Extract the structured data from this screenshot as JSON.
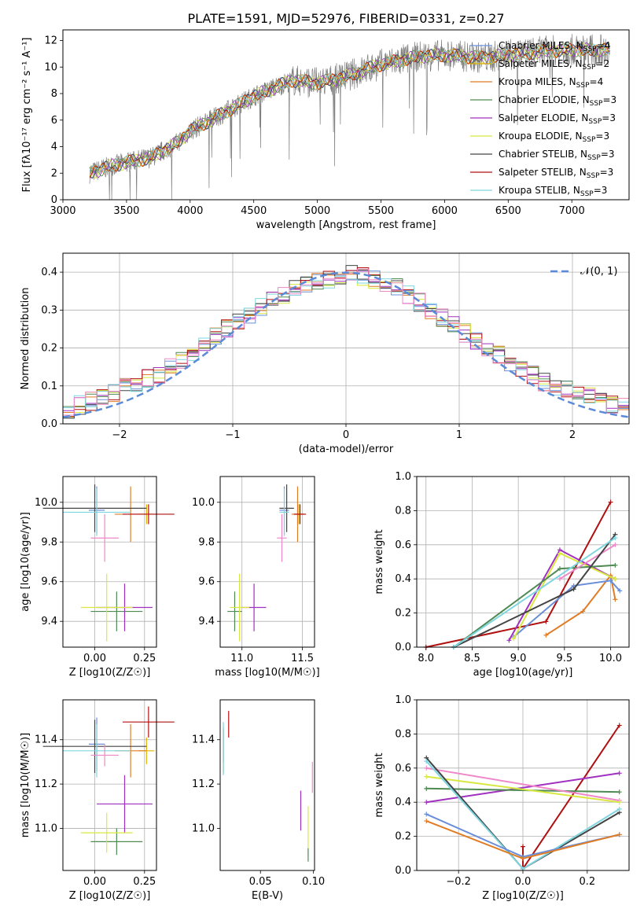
{
  "panel1": {
    "title": "PLATE=1591, MJD=52976, FIBERID=0331, z=0.27",
    "xlabel": "wavelength [Angstrom, rest frame]",
    "ylabel": "Flux [f_λ10^{-17} erg cm^{-2} s^{-1} A^{-1}]",
    "xlim": [
      3000,
      7450
    ],
    "ylim": [
      0,
      12.8
    ],
    "xticks": [
      "3000",
      "3500",
      "4000",
      "4500",
      "5000",
      "5500",
      "6000",
      "6500",
      "7000"
    ],
    "yticks": [
      "0",
      "2",
      "4",
      "6",
      "8",
      "10",
      "12"
    ],
    "legend": [
      {
        "label": "Chabrier MILES, N_SSP=4",
        "color": "#6a8fd8"
      },
      {
        "label": "Salpeter MILES, N_SSP=2",
        "color": "#e0b400"
      },
      {
        "label": "Kroupa MILES, N_SSP=4",
        "color": "#e07c25"
      },
      {
        "label": "Chabrier ELODIE, N_SSP=3",
        "color": "#4e8a52"
      },
      {
        "label": "Salpeter ELODIE, N_SSP=3",
        "color": "#a030c0"
      },
      {
        "label": "Kroupa ELODIE, N_SSP=3",
        "color": "#d8e840"
      },
      {
        "label": "Chabrier STELIB, N_SSP=3",
        "color": "#444444"
      },
      {
        "label": "Salpeter STELIB, N_SSP=3",
        "color": "#b01010"
      },
      {
        "label": "Kroupa STELIB, N_SSP=3",
        "color": "#7fd6e0"
      }
    ]
  },
  "panel2": {
    "xlabel": "(data-model)/error",
    "ylabel": "Normed distribution",
    "legend_label": "𝒩(0, 1)",
    "xlim": [
      -2.5,
      2.5
    ],
    "ylim": [
      0,
      0.45
    ],
    "xticks": [
      "−2",
      "−1",
      "0",
      "1",
      "2"
    ],
    "yticks": [
      "0.0",
      "0.1",
      "0.2",
      "0.3",
      "0.4"
    ]
  },
  "panel3": {
    "xlabel": "Z [log10(Z/Z☉)]",
    "ylabel": "age  [log10(age/yr)]",
    "xticks": [
      "0.00",
      "0.25"
    ],
    "yticks": [
      "9.4",
      "9.6",
      "9.8",
      "10.0"
    ]
  },
  "panel4": {
    "xlabel": "mass [log10(M/M☉)]",
    "xticks": [
      "11.0",
      "11.5"
    ],
    "yticks": [
      "9.4",
      "9.6",
      "9.8",
      "10.0"
    ]
  },
  "panel5": {
    "xlabel": "age  [log10(age/yr)]",
    "ylabel": "mass weight",
    "xticks": [
      "8.0",
      "8.5",
      "9.0",
      "9.5",
      "10.0"
    ],
    "yticks": [
      "0.0",
      "0.2",
      "0.4",
      "0.6",
      "0.8",
      "1.0"
    ]
  },
  "panel6": {
    "xlabel": "Z [log10(Z/Z☉)]",
    "ylabel": "mass [log10(M/M☉)]",
    "xticks": [
      "0.00",
      "0.25"
    ],
    "yticks": [
      "11.0",
      "11.2",
      "11.4"
    ]
  },
  "panel7": {
    "xlabel": "E(B-V)",
    "xticks": [
      "0.05",
      "0.10"
    ],
    "yticks": [
      "11.0",
      "11.2",
      "11.4"
    ]
  },
  "panel8": {
    "xlabel": "Z [log10(Z/Z☉)]",
    "ylabel": "mass weight",
    "xticks": [
      "−0.2",
      "0.0",
      "0.2"
    ],
    "yticks": [
      "0.0",
      "0.2",
      "0.4",
      "0.6",
      "0.8",
      "1.0"
    ]
  },
  "chart_data": [
    {
      "type": "line",
      "title": "PLATE=1591, MJD=52976, FIBERID=0331, z=0.27",
      "x_range": [
        3210,
        7300
      ],
      "spectrum_continuum": {
        "x": [
          3210,
          3400,
          3700,
          3900,
          4000,
          4200,
          4500,
          4800,
          5000,
          5200,
          5500,
          5800,
          6000,
          6300,
          6600,
          6800,
          7000,
          7300
        ],
        "y": [
          2.0,
          2.6,
          3.2,
          4.3,
          5.2,
          6.2,
          7.8,
          9.0,
          8.8,
          9.2,
          10.2,
          10.8,
          10.9,
          10.7,
          11.0,
          11.2,
          11.3,
          11.3
        ]
      },
      "series_names": [
        "Chabrier MILES, N_SSP=4",
        "Salpeter MILES, N_SSP=2",
        "Kroupa MILES, N_SSP=4",
        "Chabrier ELODIE, N_SSP=3",
        "Salpeter ELODIE, N_SSP=3",
        "Kroupa ELODIE, N_SSP=3",
        "Chabrier STELIB, N_SSP=3",
        "Salpeter STELIB, N_SSP=3",
        "Kroupa STELIB, N_SSP=3"
      ]
    },
    {
      "type": "histogram",
      "bin_edges_start": -2.5,
      "bin_width": 0.1,
      "bins": 50,
      "envelope": [
        0.04,
        0.05,
        0.06,
        0.07,
        0.08,
        0.1,
        0.11,
        0.12,
        0.13,
        0.15,
        0.17,
        0.19,
        0.21,
        0.23,
        0.25,
        0.27,
        0.29,
        0.31,
        0.33,
        0.34,
        0.36,
        0.37,
        0.38,
        0.38,
        0.39,
        0.4,
        0.39,
        0.38,
        0.37,
        0.36,
        0.34,
        0.32,
        0.3,
        0.28,
        0.26,
        0.24,
        0.22,
        0.2,
        0.18,
        0.16,
        0.15,
        0.13,
        0.11,
        0.1,
        0.09,
        0.08,
        0.07,
        0.06,
        0.05,
        0.05
      ],
      "gaussian": {
        "mean": 0,
        "sigma": 1
      }
    },
    {
      "type": "scatter",
      "name": "age vs Z / mass (error crosses)",
      "points": [
        {
          "color": "#6a8fd8",
          "Z": 0.01,
          "Zerr": 0.04,
          "age": 9.96,
          "ageerr": 0.12,
          "mass": 11.35,
          "merr": 0.04,
          "mass_z": 11.38,
          "mzerr": 0.12
        },
        {
          "color": "#e0b400",
          "Z": 0.26,
          "Zerr": 0.04,
          "age": 9.94,
          "ageerr": 0.05,
          "mass": 11.47,
          "merr": 0.04,
          "mass_z": 11.35,
          "mzerr": 0.06
        },
        {
          "color": "#e07c25",
          "Z": 0.18,
          "Zerr": 0.08,
          "age": 9.94,
          "ageerr": 0.14,
          "mass": 11.46,
          "merr": 0.05,
          "mass_z": 11.35,
          "mzerr": 0.12
        },
        {
          "color": "#4e8a52",
          "Z": 0.11,
          "Zerr": 0.13,
          "age": 9.45,
          "ageerr": 0.1,
          "mass": 10.94,
          "merr": 0.06,
          "mass_z": 10.94,
          "mzerr": 0.06
        },
        {
          "color": "#a030c0",
          "Z": 0.15,
          "Zerr": 0.14,
          "age": 9.47,
          "ageerr": 0.12,
          "mass": 11.1,
          "merr": 0.1,
          "mass_z": 11.11,
          "mzerr": 0.13
        },
        {
          "color": "#d8e840",
          "Z": 0.06,
          "Zerr": 0.13,
          "age": 9.47,
          "ageerr": 0.17,
          "mass": 10.98,
          "merr": 0.08,
          "mass_z": 10.98,
          "mzerr": 0.09
        },
        {
          "color": "#444444",
          "Z": 0.0,
          "Zerr": 0.26,
          "age": 9.97,
          "ageerr": 0.12,
          "mass": 11.37,
          "merr": 0.06,
          "mass_z": 11.37,
          "mzerr": 0.12
        },
        {
          "color": "#b01010",
          "Z": 0.27,
          "Zerr": 0.13,
          "age": 9.94,
          "ageerr": 0.05,
          "mass": 11.48,
          "merr": 0.05,
          "mass_z": 11.48,
          "mzerr": 0.07
        },
        {
          "color": "#7fd6e0",
          "Z": 0.01,
          "Zerr": 0.17,
          "age": 9.95,
          "ageerr": 0.12,
          "mass": 11.35,
          "merr": 0.04,
          "mass_z": 11.35,
          "mzerr": 0.12
        },
        {
          "color": "#ee88c8",
          "Z": 0.05,
          "Zerr": 0.07,
          "age": 9.82,
          "ageerr": 0.12,
          "mass": 11.33,
          "merr": 0.04,
          "mass_z": 11.33,
          "mzerr": 0.05
        }
      ],
      "ebv": [
        {
          "color": "#6a8fd8",
          "x": 0.015,
          "y": 11.38,
          "err": 0.08
        },
        {
          "color": "#e07c25",
          "x": 0.015,
          "y": 11.35,
          "err": 0.1
        },
        {
          "color": "#7fd6e0",
          "x": 0.015,
          "y": 11.36,
          "err": 0.12
        },
        {
          "color": "#b01010",
          "x": 0.02,
          "y": 11.47,
          "err": 0.06
        },
        {
          "color": "#a030c0",
          "x": 0.088,
          "y": 11.08,
          "err": 0.09
        },
        {
          "color": "#d8e840",
          "x": 0.095,
          "y": 10.99,
          "err": 0.11
        },
        {
          "color": "#4e8a52",
          "x": 0.095,
          "y": 10.88,
          "err": 0.03
        },
        {
          "color": "#ee88c8",
          "x": 0.099,
          "y": 11.23,
          "err": 0.07
        }
      ]
    },
    {
      "type": "line",
      "name": "mass weight vs age",
      "series": [
        {
          "color": "#b01010",
          "x": [
            8.0,
            9.3,
            10.0
          ],
          "y": [
            0.0,
            0.15,
            0.85
          ]
        },
        {
          "color": "#e07c25",
          "x": [
            9.3,
            9.7,
            10.0,
            10.05
          ],
          "y": [
            0.07,
            0.21,
            0.42,
            0.28
          ]
        },
        {
          "color": "#6a8fd8",
          "x": [
            8.95,
            9.6,
            10.0,
            10.1
          ],
          "y": [
            0.06,
            0.36,
            0.39,
            0.33
          ]
        },
        {
          "color": "#a030c0",
          "x": [
            8.9,
            9.45,
            10.05
          ],
          "y": [
            0.04,
            0.57,
            0.4
          ]
        },
        {
          "color": "#d8e840",
          "x": [
            8.95,
            9.45,
            10.05
          ],
          "y": [
            0.05,
            0.55,
            0.4
          ]
        },
        {
          "color": "#4e8a52",
          "x": [
            8.3,
            9.45,
            10.05
          ],
          "y": [
            0.0,
            0.46,
            0.48
          ]
        },
        {
          "color": "#ee88c8",
          "x": [
            9.45,
            10.05
          ],
          "y": [
            0.4,
            0.6
          ]
        },
        {
          "color": "#444444",
          "x": [
            8.3,
            9.6,
            10.05
          ],
          "y": [
            0.0,
            0.34,
            0.66
          ]
        },
        {
          "color": "#7fd6e0",
          "x": [
            8.3,
            10.05
          ],
          "y": [
            0.0,
            0.64
          ]
        }
      ]
    },
    {
      "type": "line",
      "name": "mass weight vs Z",
      "series": [
        {
          "color": "#b01010",
          "x": [
            0.0,
            0.0,
            0.3
          ],
          "y": [
            0.14,
            0.01,
            0.85
          ]
        },
        {
          "color": "#a030c0",
          "x": [
            -0.3,
            0.3
          ],
          "y": [
            0.4,
            0.57
          ]
        },
        {
          "color": "#4e8a52",
          "x": [
            -0.3,
            0.3
          ],
          "y": [
            0.48,
            0.46
          ]
        },
        {
          "color": "#ee88c8",
          "x": [
            -0.3,
            0.3
          ],
          "y": [
            0.6,
            0.41
          ]
        },
        {
          "color": "#d8e840",
          "x": [
            -0.3,
            0.3
          ],
          "y": [
            0.55,
            0.4
          ]
        },
        {
          "color": "#444444",
          "x": [
            -0.3,
            0.0,
            0.3
          ],
          "y": [
            0.66,
            0.01,
            0.34
          ]
        },
        {
          "color": "#7fd6e0",
          "x": [
            -0.3,
            0.0,
            0.3
          ],
          "y": [
            0.64,
            0.01,
            0.36
          ]
        },
        {
          "color": "#6a8fd8",
          "x": [
            -0.3,
            0.0,
            0.3
          ],
          "y": [
            0.33,
            0.08,
            0.21
          ]
        },
        {
          "color": "#e07c25",
          "x": [
            -0.3,
            0.0,
            0.3
          ],
          "y": [
            0.29,
            0.07,
            0.21
          ]
        }
      ]
    }
  ]
}
